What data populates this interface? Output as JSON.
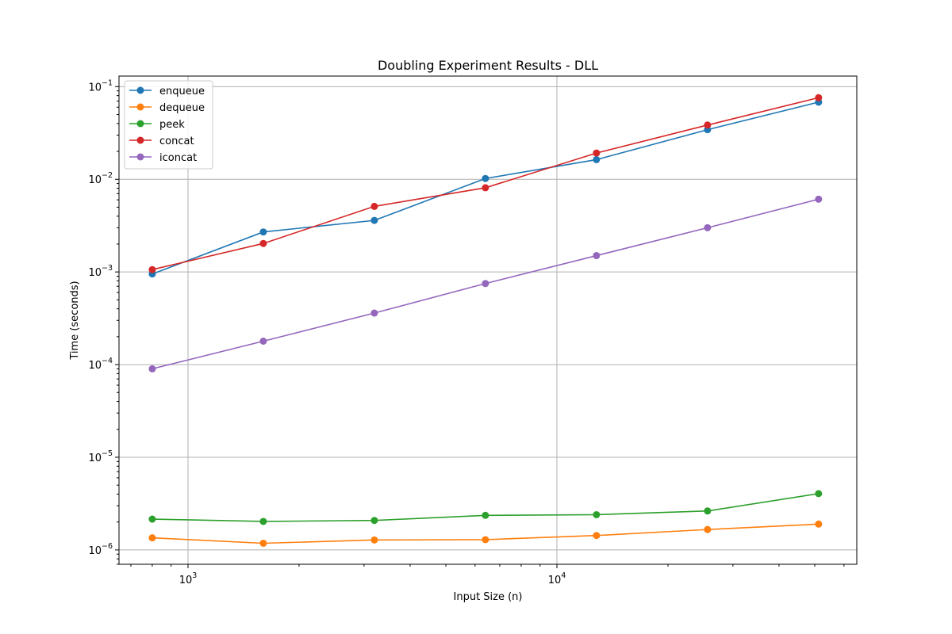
{
  "chart_data": {
    "type": "line",
    "title": "Doubling Experiment Results - DLL",
    "xlabel": "Input Size (n)",
    "ylabel": "Time (seconds)",
    "xscale": "log",
    "yscale": "log",
    "xlim": [
      650,
      65000
    ],
    "ylim": [
      7e-07,
      0.13
    ],
    "grid": true,
    "legend_position": "top-left",
    "x": [
      800,
      1600,
      3200,
      6400,
      12800,
      25600,
      51200
    ],
    "x_tick_labels": [
      {
        "base": "10",
        "exp": "3",
        "value": 1000
      },
      {
        "base": "10",
        "exp": "4",
        "value": 10000
      }
    ],
    "y_tick_labels": [
      {
        "base": "10",
        "exp": "−1",
        "value": 0.1
      },
      {
        "base": "10",
        "exp": "−2",
        "value": 0.01
      },
      {
        "base": "10",
        "exp": "−3",
        "value": 0.001
      },
      {
        "base": "10",
        "exp": "−4",
        "value": 0.0001
      },
      {
        "base": "10",
        "exp": "−5",
        "value": 1e-05
      },
      {
        "base": "10",
        "exp": "−6",
        "value": 1e-06
      }
    ],
    "series": [
      {
        "name": "enqueue",
        "color": "#1f77b4",
        "values": [
          0.00095,
          0.0027,
          0.0036,
          0.0102,
          0.0163,
          0.0343,
          0.068
        ]
      },
      {
        "name": "dequeue",
        "color": "#ff7f0e",
        "values": [
          1.35e-06,
          1.18e-06,
          1.28e-06,
          1.29e-06,
          1.43e-06,
          1.66e-06,
          1.9e-06
        ]
      },
      {
        "name": "peek",
        "color": "#2ca02c",
        "values": [
          2.15e-06,
          2.03e-06,
          2.08e-06,
          2.36e-06,
          2.4e-06,
          2.63e-06,
          4.05e-06
        ]
      },
      {
        "name": "concat",
        "color": "#d62728",
        "values": [
          0.00106,
          0.00203,
          0.0051,
          0.0081,
          0.0192,
          0.0385,
          0.076
        ]
      },
      {
        "name": "iconcat",
        "color": "#9467bd",
        "values": [
          9e-05,
          0.000179,
          0.00036,
          0.00075,
          0.0015,
          0.003,
          0.0061
        ]
      }
    ]
  }
}
